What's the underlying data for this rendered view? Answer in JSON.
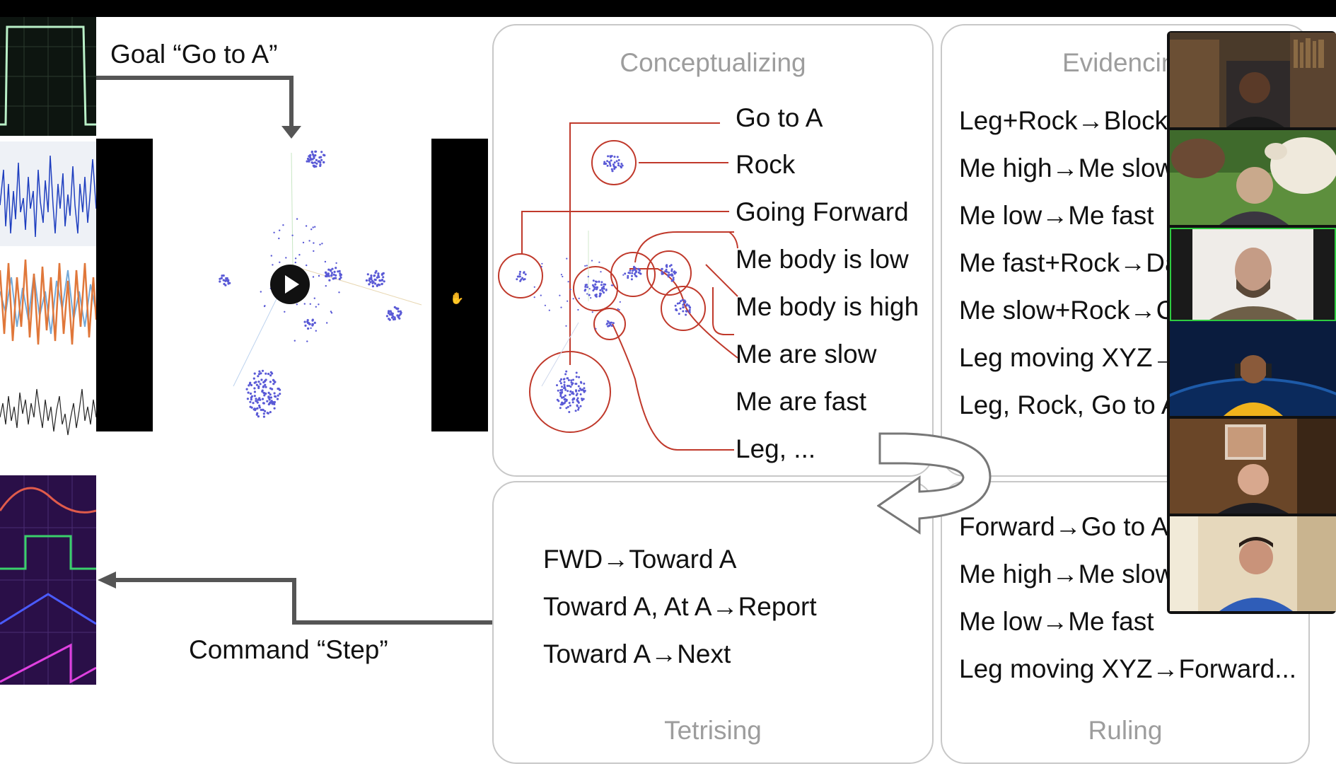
{
  "goal_label": "Goal “Go to A”",
  "command_label": "Command “Step”",
  "panels": {
    "conceptualizing": {
      "title": "Conceptualizing",
      "labels": [
        "Go to A",
        "Rock",
        "Going Forward",
        "Me body is low",
        "Me body is high",
        "Me are slow",
        "Me are fast",
        "Leg, ..."
      ]
    },
    "evidencing": {
      "title": "Evidencin",
      "items": [
        "Leg+Rock→Block",
        "Me high→Me slow",
        "Me low→Me fast",
        "Me fast+Rock→Da",
        "Me slow+Rock→C",
        "Leg moving XYZ→",
        "Leg, Rock, Go to A"
      ]
    },
    "tetrising": {
      "title": "Tetrising",
      "items": [
        "FWD→Toward A",
        "Toward A, At A→Report",
        "Toward A→Next"
      ]
    },
    "ruling": {
      "title": "Ruling",
      "items": [
        "Forward→Go to A",
        "Me high→Me slow",
        "Me low→Me fast",
        "Leg moving XYZ→Forward..."
      ]
    }
  },
  "video_player": {
    "play_icon": "play-icon"
  },
  "participants": [
    "participant-1",
    "participant-2",
    "participant-3",
    "participant-4",
    "participant-5",
    "participant-6"
  ],
  "colors": {
    "accent_red": "#c0392b",
    "scatter": "#5a5ad6",
    "speaker_border": "#2ecc40"
  }
}
